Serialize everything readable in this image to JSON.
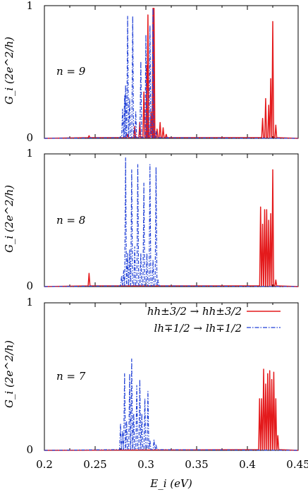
{
  "chart_data": {
    "type": "line",
    "xlabel": "E_i (eV)",
    "ylabel": "G_i (2e^2/h)",
    "xlim": [
      0.2,
      0.45
    ],
    "ylim": [
      0,
      1
    ],
    "x_ticks": [
      "0.2",
      "0.25",
      "0.3",
      "0.35",
      "0.4",
      "0.45"
    ],
    "y_ticks": [
      "0",
      "1"
    ],
    "grid": false,
    "legend_position": "top-right of bottom panel",
    "legend": [
      {
        "label": "hh±3/2 → hh±3/2",
        "color": "#e41a1c",
        "style": "solid"
      },
      {
        "label": "lh∓1/2 → lh∓1/2",
        "color": "#1f3fd6",
        "style": "dash-dot"
      }
    ],
    "panels": [
      {
        "annotation": "n = 9",
        "series": [
          {
            "label_ref": 0,
            "peaks": [
              {
                "x": 0.244,
                "y": 0.02
              },
              {
                "x": 0.282,
                "y": 0.03
              },
              {
                "x": 0.289,
                "y": 0.09
              },
              {
                "x": 0.294,
                "y": 0.12
              },
              {
                "x": 0.298,
                "y": 0.35
              },
              {
                "x": 0.301,
                "y": 0.55
              },
              {
                "x": 0.302,
                "y": 0.93
              },
              {
                "x": 0.305,
                "y": 0.2
              },
              {
                "x": 0.307,
                "y": 0.98
              },
              {
                "x": 0.308,
                "y": 0.98
              },
              {
                "x": 0.311,
                "y": 0.07
              },
              {
                "x": 0.314,
                "y": 0.12
              },
              {
                "x": 0.317,
                "y": 0.08
              },
              {
                "x": 0.32,
                "y": 0.03
              },
              {
                "x": 0.415,
                "y": 0.15
              },
              {
                "x": 0.418,
                "y": 0.3
              },
              {
                "x": 0.421,
                "y": 0.25
              },
              {
                "x": 0.423,
                "y": 0.45
              },
              {
                "x": 0.425,
                "y": 0.88
              },
              {
                "x": 0.428,
                "y": 0.1
              }
            ]
          },
          {
            "label_ref": 1,
            "peaks": [
              {
                "x": 0.277,
                "y": 0.22
              },
              {
                "x": 0.279,
                "y": 0.32
              },
              {
                "x": 0.28,
                "y": 0.4
              },
              {
                "x": 0.282,
                "y": 0.92
              },
              {
                "x": 0.284,
                "y": 0.3
              },
              {
                "x": 0.287,
                "y": 0.92
              },
              {
                "x": 0.29,
                "y": 0.2
              },
              {
                "x": 0.295,
                "y": 0.58
              },
              {
                "x": 0.3,
                "y": 0.78
              },
              {
                "x": 0.304,
                "y": 0.85
              },
              {
                "x": 0.307,
                "y": 0.98
              },
              {
                "x": 0.31,
                "y": 0.05
              }
            ]
          }
        ]
      },
      {
        "annotation": "n = 8",
        "series": [
          {
            "label_ref": 0,
            "peaks": [
              {
                "x": 0.244,
                "y": 0.1
              },
              {
                "x": 0.413,
                "y": 0.6
              },
              {
                "x": 0.415,
                "y": 0.47
              },
              {
                "x": 0.417,
                "y": 0.58
              },
              {
                "x": 0.419,
                "y": 0.58
              },
              {
                "x": 0.421,
                "y": 0.5
              },
              {
                "x": 0.423,
                "y": 0.55
              },
              {
                "x": 0.425,
                "y": 0.88
              },
              {
                "x": 0.428,
                "y": 0.05
              }
            ]
          },
          {
            "label_ref": 1,
            "peaks": [
              {
                "x": 0.276,
                "y": 0.08
              },
              {
                "x": 0.278,
                "y": 0.12
              },
              {
                "x": 0.28,
                "y": 0.97
              },
              {
                "x": 0.282,
                "y": 0.25
              },
              {
                "x": 0.284,
                "y": 0.28
              },
              {
                "x": 0.286,
                "y": 0.88
              },
              {
                "x": 0.289,
                "y": 0.3
              },
              {
                "x": 0.292,
                "y": 0.92
              },
              {
                "x": 0.295,
                "y": 0.25
              },
              {
                "x": 0.298,
                "y": 0.78
              },
              {
                "x": 0.301,
                "y": 0.25
              },
              {
                "x": 0.304,
                "y": 0.92
              },
              {
                "x": 0.307,
                "y": 0.2
              },
              {
                "x": 0.31,
                "y": 0.9
              },
              {
                "x": 0.312,
                "y": 0.05
              }
            ]
          }
        ]
      },
      {
        "annotation": "n = 7",
        "series": [
          {
            "label_ref": 0,
            "peaks": [
              {
                "x": 0.412,
                "y": 0.35
              },
              {
                "x": 0.414,
                "y": 0.35
              },
              {
                "x": 0.416,
                "y": 0.55
              },
              {
                "x": 0.418,
                "y": 0.45
              },
              {
                "x": 0.42,
                "y": 0.52
              },
              {
                "x": 0.422,
                "y": 0.54
              },
              {
                "x": 0.424,
                "y": 0.48
              },
              {
                "x": 0.426,
                "y": 0.53
              },
              {
                "x": 0.428,
                "y": 0.35
              },
              {
                "x": 0.43,
                "y": 0.1
              }
            ]
          },
          {
            "label_ref": 1,
            "peaks": [
              {
                "x": 0.275,
                "y": 0.18
              },
              {
                "x": 0.277,
                "y": 0.13
              },
              {
                "x": 0.279,
                "y": 0.52
              },
              {
                "x": 0.281,
                "y": 0.2
              },
              {
                "x": 0.284,
                "y": 0.52
              },
              {
                "x": 0.286,
                "y": 0.62
              },
              {
                "x": 0.288,
                "y": 0.25
              },
              {
                "x": 0.291,
                "y": 0.44
              },
              {
                "x": 0.294,
                "y": 0.48
              },
              {
                "x": 0.296,
                "y": 0.25
              },
              {
                "x": 0.299,
                "y": 0.35
              },
              {
                "x": 0.302,
                "y": 0.4
              },
              {
                "x": 0.304,
                "y": 0.07
              },
              {
                "x": 0.308,
                "y": 0.07
              },
              {
                "x": 0.31,
                "y": 0.04
              }
            ]
          }
        ]
      }
    ]
  },
  "colors": {
    "red": "#e41a1c",
    "blue": "#1f3fd6",
    "axis": "#000000"
  }
}
